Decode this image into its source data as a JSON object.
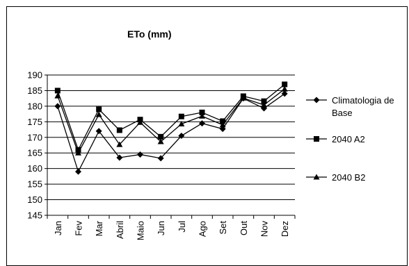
{
  "chart_data": {
    "type": "line",
    "title": "ETo (mm)",
    "xlabel": "",
    "ylabel": "",
    "categories": [
      "Jan",
      "Fev",
      "Mar",
      "Abril",
      "Maio",
      "Jun",
      "Jul",
      "Ago",
      "Set",
      "Out",
      "Nov",
      "Dez"
    ],
    "ylim": [
      145,
      190
    ],
    "yticks": [
      "145",
      "150",
      "155",
      "160",
      "165",
      "170",
      "175",
      "180",
      "185",
      "190"
    ],
    "grid": true,
    "legend_position": "right",
    "series": [
      {
        "name": "Climatologia de Base",
        "name_lines": [
          "Climatologia de",
          "Base"
        ],
        "marker": "diamond",
        "color": "#000000",
        "values": [
          180,
          159,
          172,
          163.5,
          164.5,
          163.3,
          170.5,
          174.5,
          172.7,
          182.5,
          179.3,
          184
        ]
      },
      {
        "name": "2040 A2",
        "name_lines": [
          "2040 A2"
        ],
        "marker": "square",
        "color": "#000000",
        "values": [
          185,
          166,
          179,
          172.3,
          175.7,
          170.2,
          176.7,
          178,
          175.2,
          183.2,
          181.6,
          187
        ]
      },
      {
        "name": "2040 B2",
        "name_lines": [
          "2040 B2"
        ],
        "marker": "triangle",
        "color": "#000000",
        "values": [
          183.3,
          165,
          177.3,
          167.7,
          174.8,
          168.6,
          174.3,
          176.8,
          174,
          182.6,
          180.4,
          185.5
        ]
      }
    ]
  }
}
